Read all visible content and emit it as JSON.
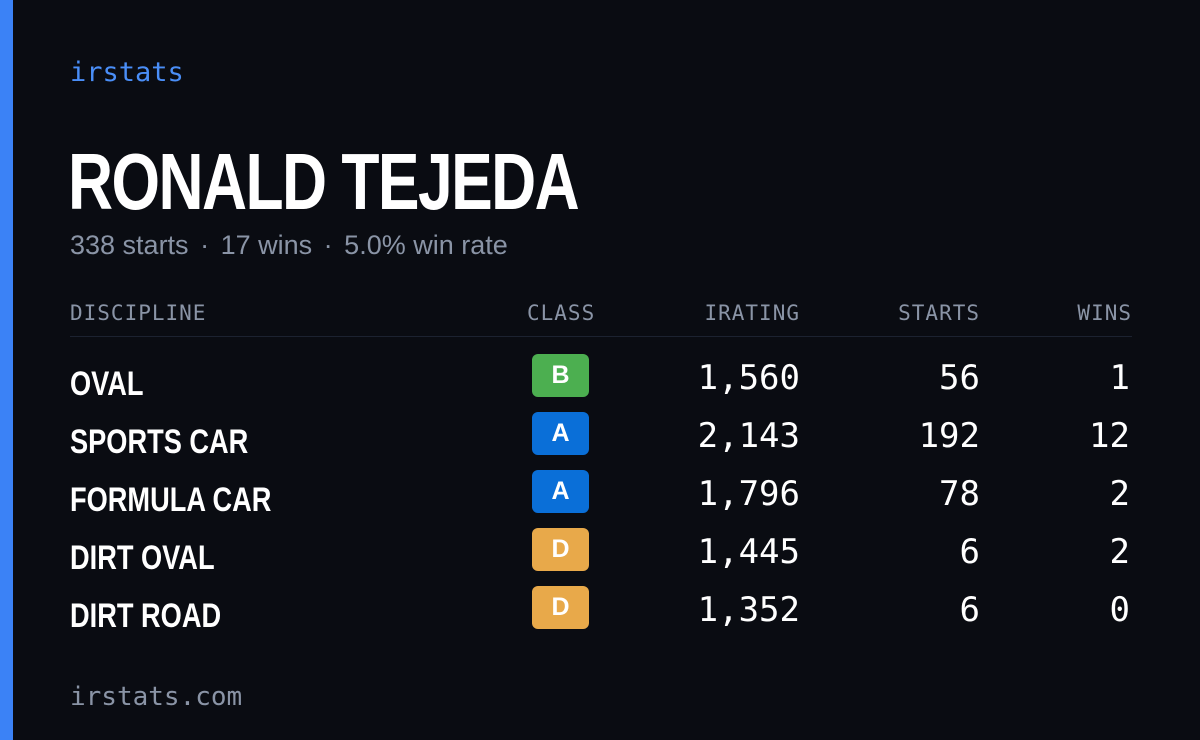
{
  "brand": "irstats",
  "driver": {
    "name": "RONALD TEJEDA",
    "starts": "338 starts",
    "wins": "17 wins",
    "win_rate": "5.0% win rate",
    "separator": "·"
  },
  "table": {
    "headers": {
      "discipline": "DISCIPLINE",
      "class": "CLASS",
      "irating": "IRATING",
      "starts": "STARTS",
      "wins": "WINS"
    },
    "rows": [
      {
        "discipline": "OVAL",
        "class": "B",
        "irating": "1,560",
        "starts": "56",
        "wins": "1"
      },
      {
        "discipline": "SPORTS CAR",
        "class": "A",
        "irating": "2,143",
        "starts": "192",
        "wins": "12"
      },
      {
        "discipline": "FORMULA CAR",
        "class": "A",
        "irating": "1,796",
        "starts": "78",
        "wins": "2"
      },
      {
        "discipline": "DIRT OVAL",
        "class": "D",
        "irating": "1,445",
        "starts": "6",
        "wins": "2"
      },
      {
        "discipline": "DIRT ROAD",
        "class": "D",
        "irating": "1,352",
        "starts": "6",
        "wins": "0"
      }
    ]
  },
  "footer": "irstats.com",
  "colors": {
    "background": "#0a0c12",
    "accent": "#3b82f6",
    "brand_text": "#4a8ef7",
    "muted_text": "#8a94a6",
    "class_A": "#0a6fd8",
    "class_B": "#4caf50",
    "class_D": "#e8a94a"
  }
}
